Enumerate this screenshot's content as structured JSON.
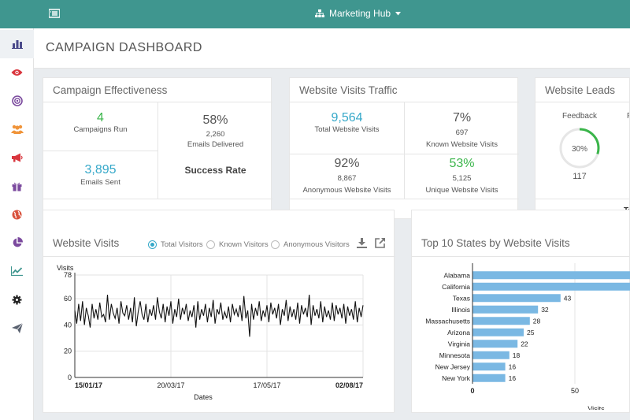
{
  "nav": {
    "app_name": "Marketing Hub"
  },
  "page": {
    "title": "CAMPAIGN DASHBOARD"
  },
  "sidebar_icons": [
    "bar-chart-icon",
    "eye-icon",
    "target-icon",
    "users-icon",
    "megaphone-icon",
    "gift-icon",
    "globe-icon",
    "pie-chart-icon",
    "line-chart-icon",
    "gear-icon",
    "paper-plane-icon"
  ],
  "effectiveness": {
    "title": "Campaign Effectiveness",
    "campaigns_value": "4",
    "campaigns_label": "Campaigns Run",
    "emails_sent_value": "3,895",
    "emails_sent_label": "Emails Sent",
    "delivered_pct": "58%",
    "delivered_count": "2,260",
    "delivered_label": "Emails Delivered",
    "success_label": "Success Rate"
  },
  "traffic": {
    "title": "Website Visits Traffic",
    "total_value": "9,564",
    "total_label": "Total Website Visits",
    "known_pct": "7%",
    "known_count": "697",
    "known_label": "Known Website Visits",
    "anon_pct": "92%",
    "anon_count": "8,867",
    "anon_label": "Anonymous Website Visits",
    "unique_pct": "53%",
    "unique_count": "5,125",
    "unique_label": "Unique Website Visits"
  },
  "leads": {
    "title": "Website Leads",
    "feedback_label": "Feedback",
    "feedback_pct": "30%",
    "feedback_fraction": 0.3,
    "feedback_count": "117",
    "clipped_second_label": "F",
    "bottom_clipped": "To"
  },
  "visits_chart": {
    "title": "Website Visits",
    "radios": [
      {
        "label": "Total Visitors",
        "selected": true
      },
      {
        "label": "Known Visitors",
        "selected": false
      },
      {
        "label": "Anonymous Visitors",
        "selected": false
      }
    ]
  },
  "states_chart": {
    "title": "Top 10 States by Website Visits"
  },
  "colors": {
    "brand": "#3f968f",
    "accent": "#35a8c9",
    "success": "#3ab54a",
    "bar": "#7ab8e3"
  },
  "chart_data": [
    {
      "type": "line",
      "title": "",
      "xlabel": "Dates",
      "ylabel": "Visits",
      "ylim": [
        0,
        78
      ],
      "yticks": [
        0,
        20,
        40,
        60,
        78
      ],
      "xticks": [
        "15/01/17",
        "20/03/17",
        "17/05/17",
        "02/08/17"
      ],
      "grid": true,
      "series": [
        {
          "values": [
            51,
            41,
            56,
            43,
            58,
            40,
            53,
            47,
            38,
            56,
            45,
            52,
            44,
            57,
            46,
            48,
            42,
            63,
            44,
            56,
            49,
            45,
            53,
            41,
            58,
            49,
            47,
            55,
            44,
            53,
            42,
            61,
            39,
            50,
            58,
            48,
            44,
            56,
            42,
            52,
            47,
            55,
            44,
            61,
            50,
            45,
            56,
            42,
            54,
            47,
            58,
            41,
            52,
            46,
            60,
            44,
            53,
            48,
            56,
            43,
            51,
            46,
            55,
            38,
            58,
            44,
            52,
            47,
            56,
            42,
            53,
            46,
            59,
            41,
            52,
            48,
            57,
            44,
            50,
            45,
            54,
            42,
            56,
            48,
            52,
            46,
            55,
            43,
            62,
            45,
            51,
            31,
            56,
            44,
            53,
            47,
            58,
            43,
            51,
            46,
            55,
            42,
            57,
            48,
            53,
            45,
            56,
            40,
            52,
            47,
            59,
            43,
            54,
            46,
            52,
            44,
            57,
            41,
            55,
            48,
            53,
            46,
            63,
            40,
            55,
            47,
            52,
            45,
            58,
            42,
            54,
            46,
            51,
            44,
            57,
            43,
            55,
            48,
            53,
            45,
            56,
            41,
            54,
            47,
            52,
            44,
            58,
            42,
            53,
            46,
            55
          ]
        }
      ]
    },
    {
      "type": "bar",
      "title": "",
      "xlabel": "Visits",
      "orientation": "horizontal",
      "categories": [
        "Alabama",
        "California",
        "Texas",
        "Illinois",
        "Massachusetts",
        "Arizona",
        "Virginia",
        "Minnesota",
        "New Jersey",
        "New York"
      ],
      "values": [
        null,
        null,
        43,
        32,
        28,
        25,
        22,
        18,
        16,
        16
      ],
      "value_labels": [
        "",
        "",
        "43",
        "32",
        "28",
        "25",
        "22",
        "18",
        "16",
        "16"
      ],
      "xticks": [
        0,
        50
      ],
      "grid": true
    }
  ]
}
